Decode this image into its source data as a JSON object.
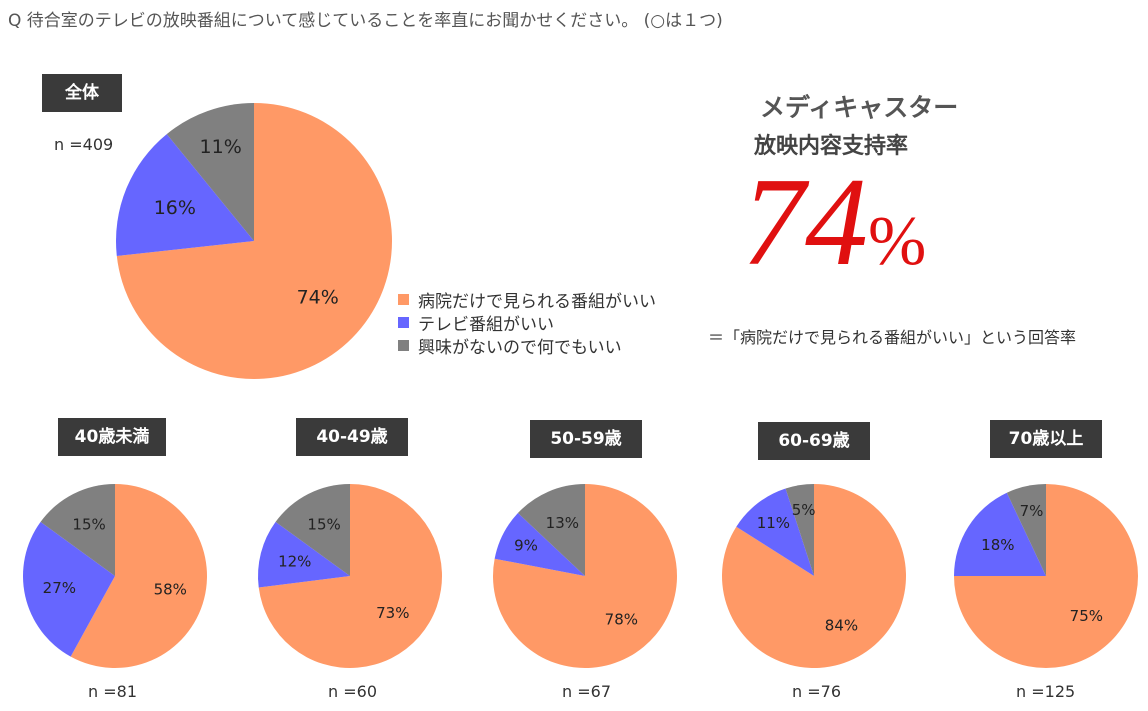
{
  "question": "Q 待合室のテレビの放映番組について感じていることを率直にお聞かせください。 (○は１つ)",
  "colors": {
    "hospital_only": "#FF9966",
    "tv": "#6666FF",
    "any": "#808080",
    "highlight": "#E01010"
  },
  "legend": [
    {
      "label": "病院だけで見られる番組がいい",
      "color": "#FF9966"
    },
    {
      "label": "テレビ番組がいい",
      "color": "#6666FF"
    },
    {
      "label": "興味がないので何でもいい",
      "color": "#808080"
    }
  ],
  "headline": {
    "line1": "メディキャスター",
    "line2": "放映内容支持率",
    "value": "74",
    "unit": "%",
    "note": "＝「病院だけで見られる番組がいい」という回答率"
  },
  "chart_data": [
    {
      "type": "pie",
      "title": "全体",
      "n": "n =409",
      "categories": [
        "病院だけで見られる番組がいい",
        "テレビ番組がいい",
        "興味がないので何でもいい"
      ],
      "values": [
        74,
        16,
        11
      ],
      "labels": [
        "74%",
        "16%",
        "11%"
      ]
    },
    {
      "type": "pie",
      "title": "40歳未満",
      "n": "n =81",
      "categories": [
        "病院だけで見られる番組がいい",
        "テレビ番組がいい",
        "興味がないので何でもいい"
      ],
      "values": [
        58,
        27,
        15
      ],
      "labels": [
        "58%",
        "27%",
        "15%"
      ]
    },
    {
      "type": "pie",
      "title": "40-49歳",
      "n": "n =60",
      "categories": [
        "病院だけで見られる番組がいい",
        "テレビ番組がいい",
        "興味がないので何でもいい"
      ],
      "values": [
        73,
        12,
        15
      ],
      "labels": [
        "73%",
        "12%",
        "15%"
      ]
    },
    {
      "type": "pie",
      "title": "50-59歳",
      "n": "n =67",
      "categories": [
        "病院だけで見られる番組がいい",
        "テレビ番組がいい",
        "興味がないので何でもいい"
      ],
      "values": [
        78,
        9,
        13
      ],
      "labels": [
        "78%",
        "9%",
        "13%"
      ]
    },
    {
      "type": "pie",
      "title": "60-69歳",
      "n": "n =76",
      "categories": [
        "病院だけで見られる番組がいい",
        "テレビ番組がいい",
        "興味がないので何でもいい"
      ],
      "values": [
        84,
        11,
        5
      ],
      "labels": [
        "84%",
        "11%",
        "5%"
      ]
    },
    {
      "type": "pie",
      "title": "70歳以上",
      "n": "n =125",
      "categories": [
        "病院だけで見られる番組がいい",
        "テレビ番組がいい",
        "興味がないので何でもいい"
      ],
      "values": [
        75,
        18,
        7
      ],
      "labels": [
        "75%",
        "18%",
        "7%"
      ]
    }
  ]
}
